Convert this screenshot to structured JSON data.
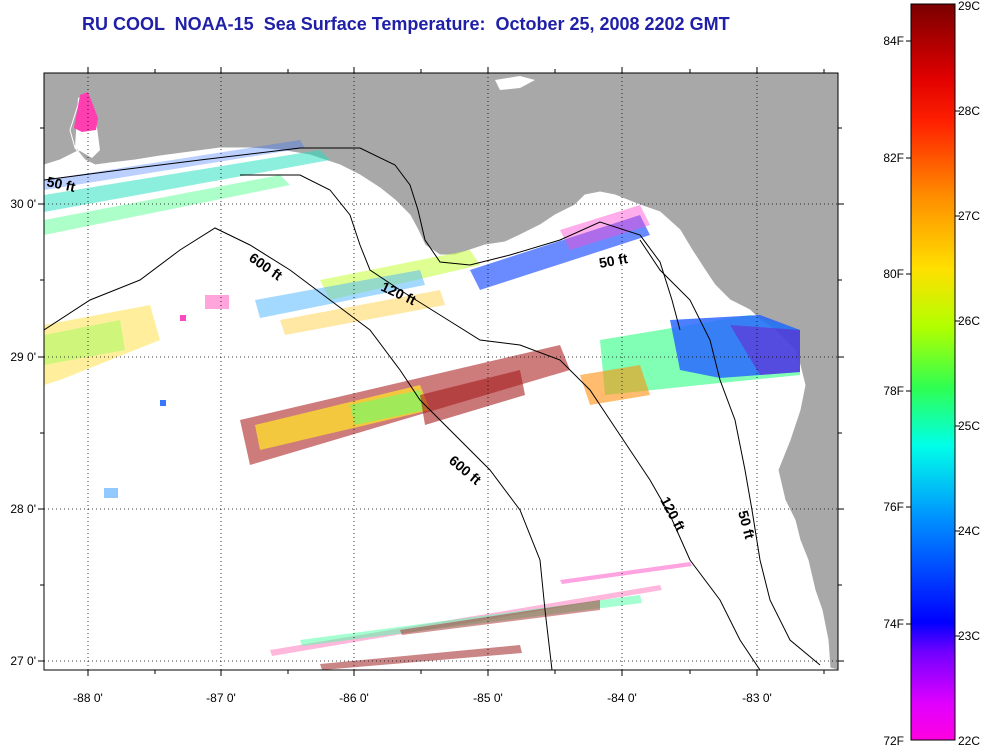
{
  "title": "RU COOL  NOAA-15  Sea Surface Temperature:  October 25, 2008 2202 GMT",
  "map": {
    "x_ticks": [
      "-88 0'",
      "-87 0'",
      "-86 0'",
      "-85 0'",
      "-84 0'",
      "-83 0'"
    ],
    "y_ticks": [
      "30 0'",
      "29 0'",
      "28 0'",
      "27 0'"
    ],
    "land_color": "#a8a8a8",
    "water_color": "#ffffff",
    "contours": [
      {
        "label": "50 ft"
      },
      {
        "label": "50 ft"
      },
      {
        "label": "50 ft"
      },
      {
        "label": "120 ft"
      },
      {
        "label": "120 ft"
      },
      {
        "label": "600 ft"
      },
      {
        "label": "600 ft"
      }
    ]
  },
  "colorbar": {
    "celsius_labels": [
      "29C",
      "28C",
      "27C",
      "26C",
      "25C",
      "24C",
      "23C",
      "22C"
    ],
    "fahrenheit_labels": [
      "84F",
      "82F",
      "80F",
      "78F",
      "76F",
      "74F",
      "72F"
    ],
    "colors_top_to_bottom": [
      "#8b0000",
      "#ff1a00",
      "#ff8000",
      "#ffd000",
      "#c8ff00",
      "#40ff40",
      "#00ffe0",
      "#00a0ff",
      "#0000ff",
      "#8000ff",
      "#ff00ff"
    ]
  }
}
